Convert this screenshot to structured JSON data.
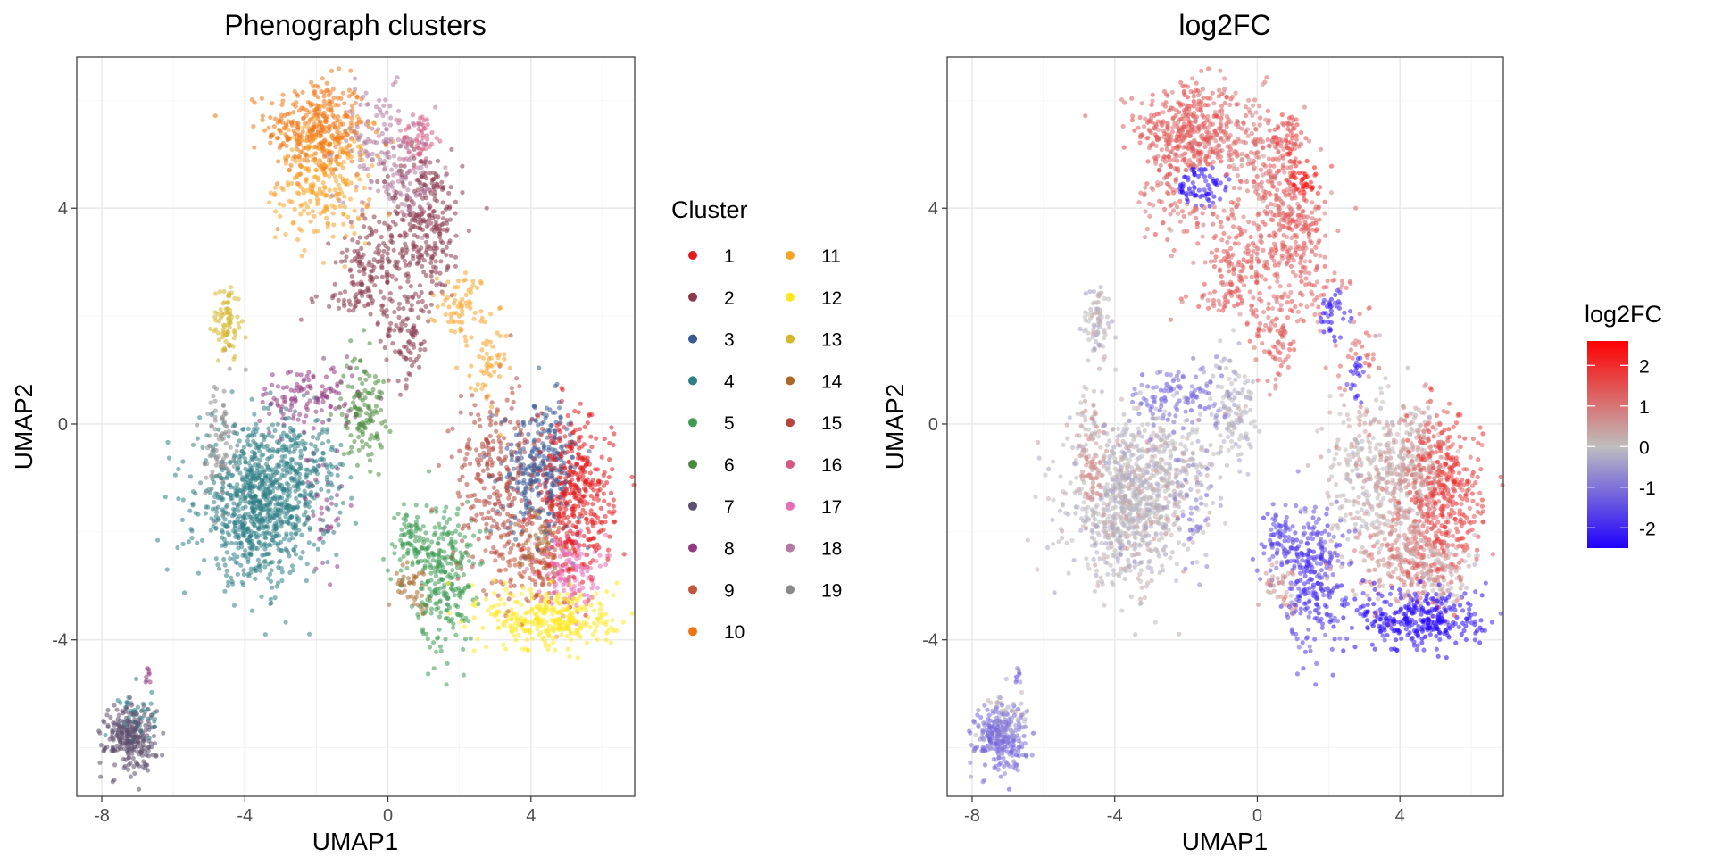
{
  "chart_data": [
    {
      "type": "scatter",
      "title": "Phenograph clusters",
      "xlabel": "UMAP1",
      "ylabel": "UMAP2",
      "xlim": [
        -8.7,
        6.9
      ],
      "ylim": [
        -6.9,
        6.8
      ],
      "xticks": [
        -8,
        -4,
        0,
        4
      ],
      "yticks": [
        -4,
        0,
        4
      ],
      "grid": true,
      "color_by": "Cluster",
      "legend": {
        "title": "Cluster",
        "position": "right",
        "entries": [
          {
            "label": "1",
            "color": "#e41a1c"
          },
          {
            "label": "2",
            "color": "#8b3a4e"
          },
          {
            "label": "3",
            "color": "#3a5a96"
          },
          {
            "label": "4",
            "color": "#2f7f86"
          },
          {
            "label": "5",
            "color": "#3d9a52"
          },
          {
            "label": "6",
            "color": "#4a8a3c"
          },
          {
            "label": "7",
            "color": "#5c4f6e"
          },
          {
            "label": "8",
            "color": "#923a83"
          },
          {
            "label": "9",
            "color": "#c2553c"
          },
          {
            "label": "10",
            "color": "#f07412"
          },
          {
            "label": "11",
            "color": "#f7a324"
          },
          {
            "label": "12",
            "color": "#ffe820"
          },
          {
            "label": "13",
            "color": "#d6b62c"
          },
          {
            "label": "14",
            "color": "#a8692a"
          },
          {
            "label": "15",
            "color": "#b3473c"
          },
          {
            "label": "16",
            "color": "#d45a82"
          },
          {
            "label": "17",
            "color": "#e86cb6"
          },
          {
            "label": "18",
            "color": "#b07aa1"
          },
          {
            "label": "19",
            "color": "#8a8a8a"
          }
        ]
      },
      "regions": [
        {
          "cluster": "10",
          "cx": -2.0,
          "cy": 5.5,
          "sx": 0.7,
          "sy": 0.45,
          "n": 320
        },
        {
          "cluster": "11",
          "cx": -1.8,
          "cy": 4.5,
          "sx": 0.65,
          "sy": 0.55,
          "n": 260
        },
        {
          "cluster": "11",
          "cx": 2.1,
          "cy": 2.2,
          "sx": 0.35,
          "sy": 0.3,
          "n": 70
        },
        {
          "cluster": "11",
          "cx": 2.8,
          "cy": 1.0,
          "sx": 0.25,
          "sy": 0.4,
          "n": 50
        },
        {
          "cluster": "18",
          "cx": -0.3,
          "cy": 5.2,
          "sx": 0.6,
          "sy": 0.5,
          "n": 120
        },
        {
          "cluster": "18",
          "cx": 0.5,
          "cy": 4.5,
          "sx": 0.5,
          "sy": 0.4,
          "n": 80
        },
        {
          "cluster": "16",
          "cx": 0.9,
          "cy": 5.3,
          "sx": 0.25,
          "sy": 0.25,
          "n": 60
        },
        {
          "cluster": "2",
          "cx": 1.0,
          "cy": 3.7,
          "sx": 0.55,
          "sy": 0.7,
          "n": 300
        },
        {
          "cluster": "2",
          "cx": -0.5,
          "cy": 3.0,
          "sx": 0.5,
          "sy": 0.35,
          "n": 110
        },
        {
          "cluster": "2",
          "cx": 0.5,
          "cy": 1.6,
          "sx": 0.35,
          "sy": 0.45,
          "n": 90
        },
        {
          "cluster": "2",
          "cx": -0.8,
          "cy": 2.3,
          "sx": 0.55,
          "sy": 0.2,
          "n": 50
        },
        {
          "cluster": "8",
          "cx": -2.2,
          "cy": 0.5,
          "sx": 0.7,
          "sy": 0.3,
          "n": 120
        },
        {
          "cluster": "8",
          "cx": -1.8,
          "cy": -1.5,
          "sx": 0.3,
          "sy": 0.6,
          "n": 40
        },
        {
          "cluster": "6",
          "cx": -0.7,
          "cy": 0.3,
          "sx": 0.3,
          "sy": 0.5,
          "n": 130
        },
        {
          "cluster": "5",
          "cx": 1.6,
          "cy": -2.8,
          "sx": 0.4,
          "sy": 0.7,
          "n": 260
        },
        {
          "cluster": "5",
          "cx": 0.6,
          "cy": -2.2,
          "sx": 0.35,
          "sy": 0.3,
          "n": 80
        },
        {
          "cluster": "14",
          "cx": 0.7,
          "cy": -3.0,
          "sx": 0.25,
          "sy": 0.2,
          "n": 40
        },
        {
          "cluster": "13",
          "cx": -4.5,
          "cy": 1.9,
          "sx": 0.2,
          "sy": 0.35,
          "n": 80
        },
        {
          "cluster": "19",
          "cx": -4.7,
          "cy": -0.3,
          "sx": 0.2,
          "sy": 0.6,
          "n": 90
        },
        {
          "cluster": "4",
          "cx": -3.6,
          "cy": -1.5,
          "sx": 0.85,
          "sy": 0.7,
          "n": 900
        },
        {
          "cluster": "4",
          "cx": -2.2,
          "cy": -0.8,
          "sx": 0.5,
          "sy": 0.5,
          "n": 120
        },
        {
          "cluster": "7",
          "cx": -7.2,
          "cy": -5.8,
          "sx": 0.35,
          "sy": 0.3,
          "n": 260
        },
        {
          "cluster": "4",
          "cx": -7.0,
          "cy": -5.4,
          "sx": 0.25,
          "sy": 0.25,
          "n": 40
        },
        {
          "cluster": "8",
          "cx": -6.7,
          "cy": -4.6,
          "sx": 0.05,
          "sy": 0.1,
          "n": 8
        },
        {
          "cluster": "1",
          "cx": 5.2,
          "cy": -1.4,
          "sx": 0.55,
          "sy": 0.75,
          "n": 420
        },
        {
          "cluster": "3",
          "cx": 4.3,
          "cy": -0.8,
          "sx": 0.55,
          "sy": 0.6,
          "n": 300
        },
        {
          "cluster": "15",
          "cx": 3.0,
          "cy": -1.0,
          "sx": 0.6,
          "sy": 0.8,
          "n": 260
        },
        {
          "cluster": "9",
          "cx": 3.8,
          "cy": -2.6,
          "sx": 0.6,
          "sy": 0.4,
          "n": 120
        },
        {
          "cluster": "12",
          "cx": 4.6,
          "cy": -3.6,
          "sx": 0.9,
          "sy": 0.3,
          "n": 330
        },
        {
          "cluster": "17",
          "cx": 5.0,
          "cy": -2.7,
          "sx": 0.4,
          "sy": 0.35,
          "n": 140
        },
        {
          "cluster": "14",
          "cx": 4.2,
          "cy": -2.2,
          "sx": 0.3,
          "sy": 0.3,
          "n": 50
        }
      ]
    },
    {
      "type": "scatter",
      "title": "log2FC",
      "xlabel": "UMAP1",
      "ylabel": "UMAP2",
      "xlim": [
        -8.7,
        6.9
      ],
      "ylim": [
        -6.9,
        6.8
      ],
      "xticks": [
        -8,
        -4,
        0,
        4
      ],
      "yticks": [
        -4,
        0,
        4
      ],
      "grid": true,
      "color_by": "log2FC",
      "legend": {
        "title": "log2FC",
        "position": "right",
        "type": "colorbar",
        "range": [
          -2.5,
          2.6
        ],
        "breaks": [
          2,
          1,
          0,
          -1,
          -2
        ],
        "gradient": [
          "#2000ff",
          "#bebebe",
          "#ff0000"
        ]
      },
      "cluster_log2fc": {
        "1": 1.7,
        "2": 1.3,
        "3": 0.4,
        "4": 0.0,
        "5": -1.6,
        "6": -0.1,
        "7": -1.0,
        "8": -1.1,
        "9": 0.9,
        "10": 1.4,
        "11": 1.2,
        "12": -2.4,
        "13": 0.0,
        "14": 0.7,
        "15": 0.2,
        "16": 1.6,
        "17": 0.3,
        "18": 1.1,
        "19": 0.3
      },
      "overrides": [
        {
          "cx": -1.5,
          "cy": 4.4,
          "sx": 0.6,
          "sy": 0.3,
          "value": -2.3
        },
        {
          "cx": 1.4,
          "cy": 4.6,
          "sx": 0.35,
          "sy": 0.35,
          "value": 2.4
        },
        {
          "cx": 2.2,
          "cy": 2.0,
          "sx": 0.35,
          "sy": 0.4,
          "value": -2.3
        },
        {
          "cx": 2.8,
          "cy": 0.8,
          "sx": 0.25,
          "sy": 0.35,
          "value": -2.2
        },
        {
          "cx": -4.6,
          "cy": -1.0,
          "sx": 0.25,
          "sy": 0.4,
          "value": 0.6
        },
        {
          "cx": 1.5,
          "cy": -2.8,
          "sx": 0.35,
          "sy": 0.55,
          "value": -1.8
        }
      ]
    }
  ]
}
